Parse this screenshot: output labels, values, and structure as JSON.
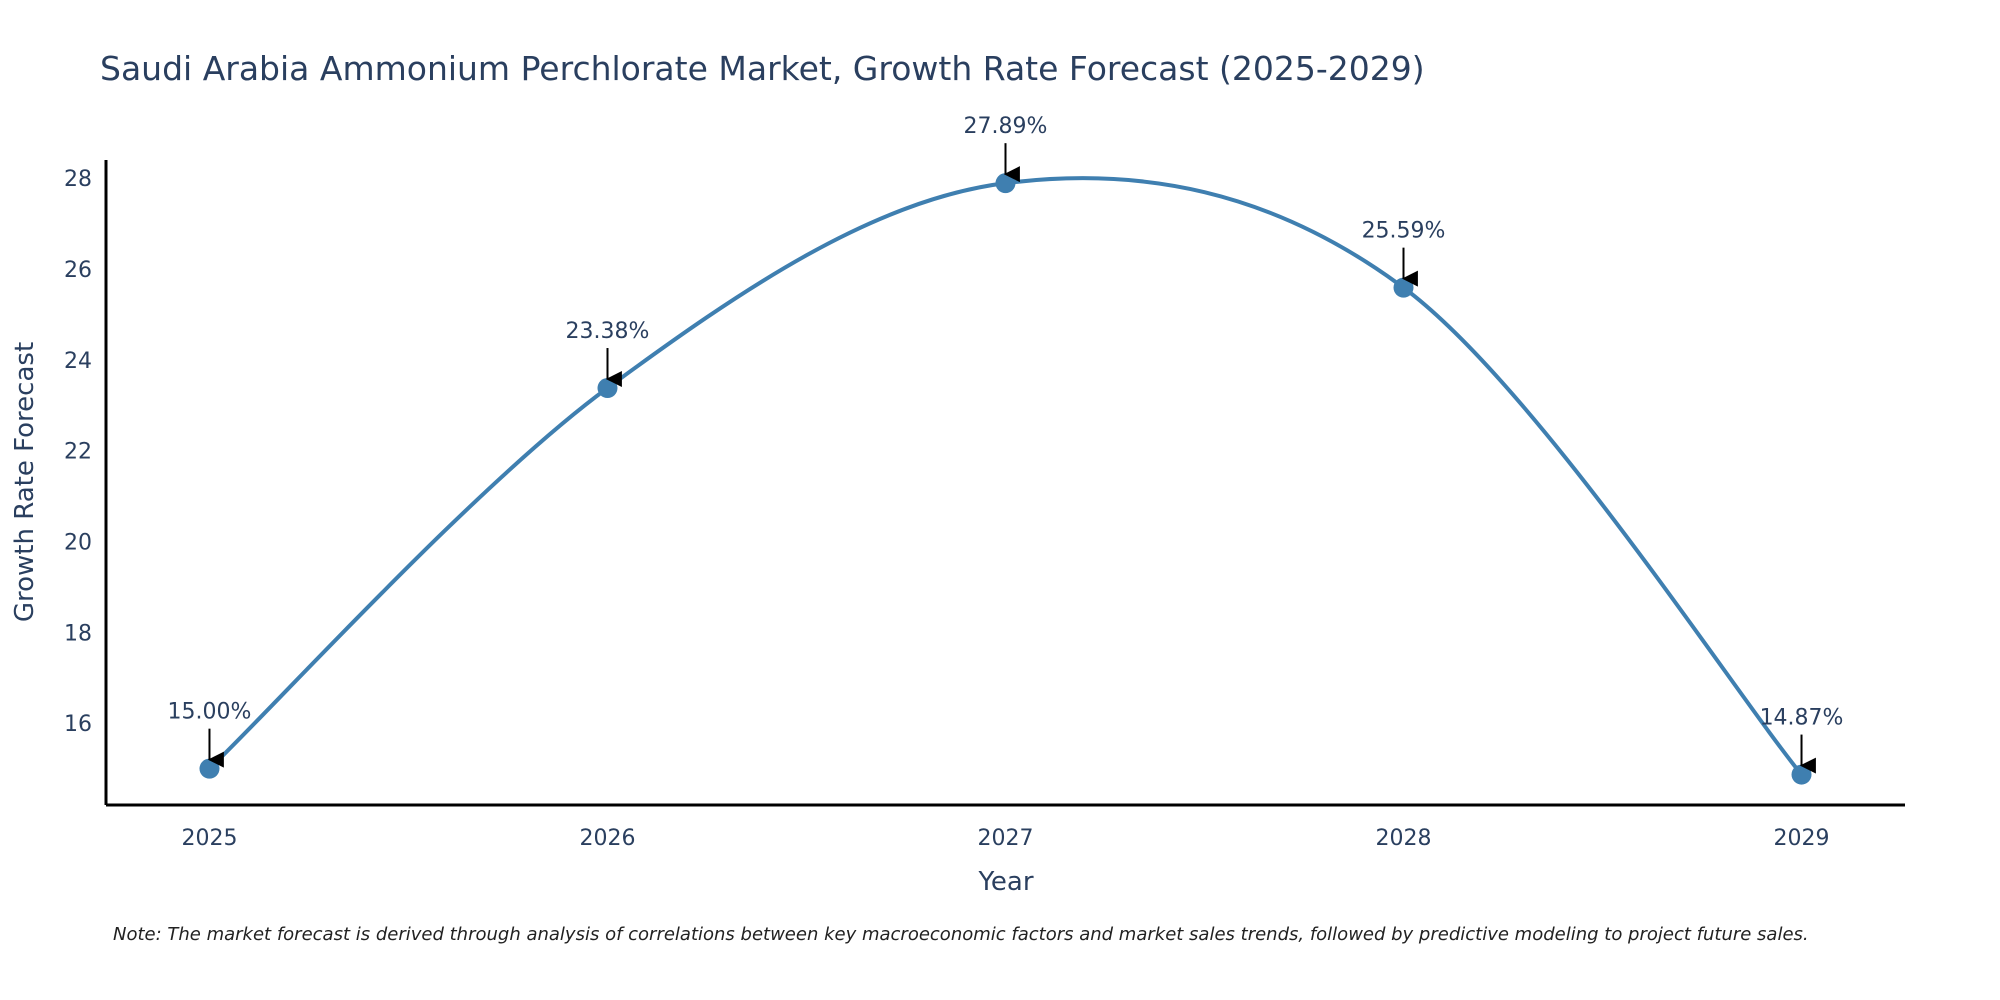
{
  "colors": {
    "series": "#3f7fb0",
    "marker": "#3f7fb0",
    "axis": "#000000",
    "text": "#2a3f5f",
    "arrow": "#000000"
  },
  "chart_data": {
    "type": "line",
    "title": "Saudi Arabia Ammonium Perchlorate Market, Growth Rate Forecast (2025-2029)",
    "xlabel": "Year",
    "ylabel": "Growth Rate Forecast",
    "x": [
      "2025",
      "2026",
      "2027",
      "2028",
      "2029"
    ],
    "series": [
      {
        "name": "Growth Rate Forecast",
        "values": [
          15.0,
          23.38,
          27.89,
          25.59,
          14.87
        ]
      }
    ],
    "data_labels": [
      "15.00%",
      "23.38%",
      "27.89%",
      "25.59%",
      "14.87%"
    ],
    "yticks": [
      16,
      18,
      20,
      22,
      24,
      26,
      28
    ],
    "ylim": [
      14.2,
      28.4
    ],
    "xlim": [
      -0.26,
      4.26
    ],
    "grid": false,
    "line_shape": "spline"
  },
  "note": "Note: The market forecast is derived through analysis of correlations between key macroeconomic factors and market sales trends, followed by predictive modeling to project future sales."
}
